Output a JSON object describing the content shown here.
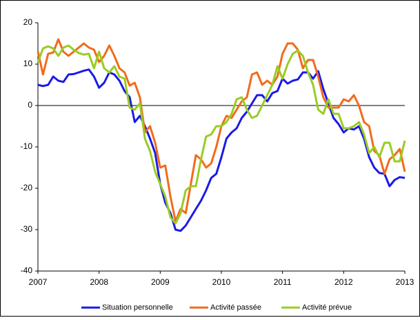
{
  "chart_data": {
    "type": "line",
    "x": [
      2007,
      2007.083,
      2007.167,
      2007.25,
      2007.333,
      2007.417,
      2007.5,
      2007.583,
      2007.667,
      2007.75,
      2007.833,
      2007.917,
      2008,
      2008.083,
      2008.167,
      2008.25,
      2008.333,
      2008.417,
      2008.5,
      2008.583,
      2008.667,
      2008.75,
      2008.833,
      2008.917,
      2009,
      2009.083,
      2009.167,
      2009.25,
      2009.333,
      2009.417,
      2009.5,
      2009.583,
      2009.667,
      2009.75,
      2009.833,
      2009.917,
      2010,
      2010.083,
      2010.167,
      2010.25,
      2010.333,
      2010.417,
      2010.5,
      2010.583,
      2010.667,
      2010.75,
      2010.833,
      2010.917,
      2011,
      2011.083,
      2011.167,
      2011.25,
      2011.333,
      2011.417,
      2011.5,
      2011.583,
      2011.667,
      2011.75,
      2011.833,
      2011.917,
      2012,
      2012.083,
      2012.167,
      2012.25,
      2012.333,
      2012.417,
      2012.5,
      2012.583,
      2012.667,
      2012.75,
      2012.833,
      2012.917,
      2013
    ],
    "series": [
      {
        "name": "Situation personnelle",
        "color": "#1a1ae6",
        "values": [
          5,
          4.7,
          5,
          7,
          6,
          5.7,
          7.5,
          7.6,
          8,
          8.4,
          8.7,
          7,
          4.3,
          5.5,
          8,
          7.5,
          6,
          3.5,
          2,
          -4,
          -2.5,
          -5,
          -8,
          -11.5,
          -19,
          -23.5,
          -26,
          -30,
          -30.3,
          -29,
          -27,
          -25,
          -23,
          -20.5,
          -17.5,
          -16.5,
          -12.5,
          -8,
          -6.5,
          -5.5,
          -3,
          -1.5,
          0.5,
          2.5,
          2.5,
          1,
          3,
          3.5,
          6.5,
          5.3,
          6,
          6.3,
          8,
          8,
          6.5,
          8.3,
          4,
          0.5,
          -3,
          -4.5,
          -6.5,
          -5.5,
          -5.8,
          -5,
          -8,
          -12.5,
          -15,
          -16.3,
          -16.5,
          -19.5,
          -18,
          -17.3,
          -17.5
        ]
      },
      {
        "name": "Activité passée",
        "color": "#f26a1b",
        "values": [
          13,
          7.5,
          12.5,
          12.8,
          16,
          13,
          12,
          13,
          14,
          15,
          14,
          13.5,
          10.5,
          12,
          14.5,
          12,
          9,
          8,
          4.8,
          5.5,
          2,
          -6.5,
          -5,
          -9,
          -15,
          -14.5,
          -22,
          -28,
          -25,
          -26,
          -19,
          -12,
          -13,
          -15,
          -14,
          -10,
          -5,
          -2.5,
          -3,
          -1,
          1,
          2,
          7.5,
          8,
          5,
          6,
          5,
          7,
          12.5,
          15,
          15,
          13.5,
          9,
          11,
          11,
          7,
          2,
          -0.5,
          -0.5,
          -0.5,
          1.5,
          1,
          2.5,
          0,
          -4,
          -5,
          -11,
          -12,
          -16.5,
          -13,
          -12,
          -10.5,
          -16
        ]
      },
      {
        "name": "Activité prévue",
        "color": "#99cc22",
        "values": [
          10.5,
          13.8,
          14.3,
          13.8,
          12,
          14,
          14.5,
          13.5,
          12.7,
          12.3,
          12.5,
          9,
          13,
          9,
          8,
          9.5,
          7,
          6.5,
          -0.5,
          -1,
          0.5,
          -8,
          -11,
          -16,
          -19,
          -22,
          -27,
          -28.5,
          -26,
          -20.5,
          -19.5,
          -19.5,
          -13,
          -7.5,
          -7,
          -5,
          -5,
          -4,
          -2,
          1.5,
          2,
          -1,
          -3,
          -2.5,
          0,
          2.5,
          5,
          9.5,
          6.5,
          10,
          12.5,
          13.3,
          12,
          8,
          5,
          -1,
          -2,
          1.5,
          -2,
          -2,
          -5.5,
          -5.5,
          -5,
          -4,
          -7,
          -11.5,
          -10,
          -12.5,
          -9,
          -9,
          -13.5,
          -13.5,
          -8.5
        ]
      }
    ],
    "xlim": [
      2007,
      2013
    ],
    "xticks": [
      2007,
      2008,
      2009,
      2010,
      2011,
      2012,
      2013
    ],
    "ylim": [
      -40,
      20
    ],
    "yticks": [
      -40,
      -30,
      -20,
      -10,
      0,
      10,
      20
    ]
  }
}
